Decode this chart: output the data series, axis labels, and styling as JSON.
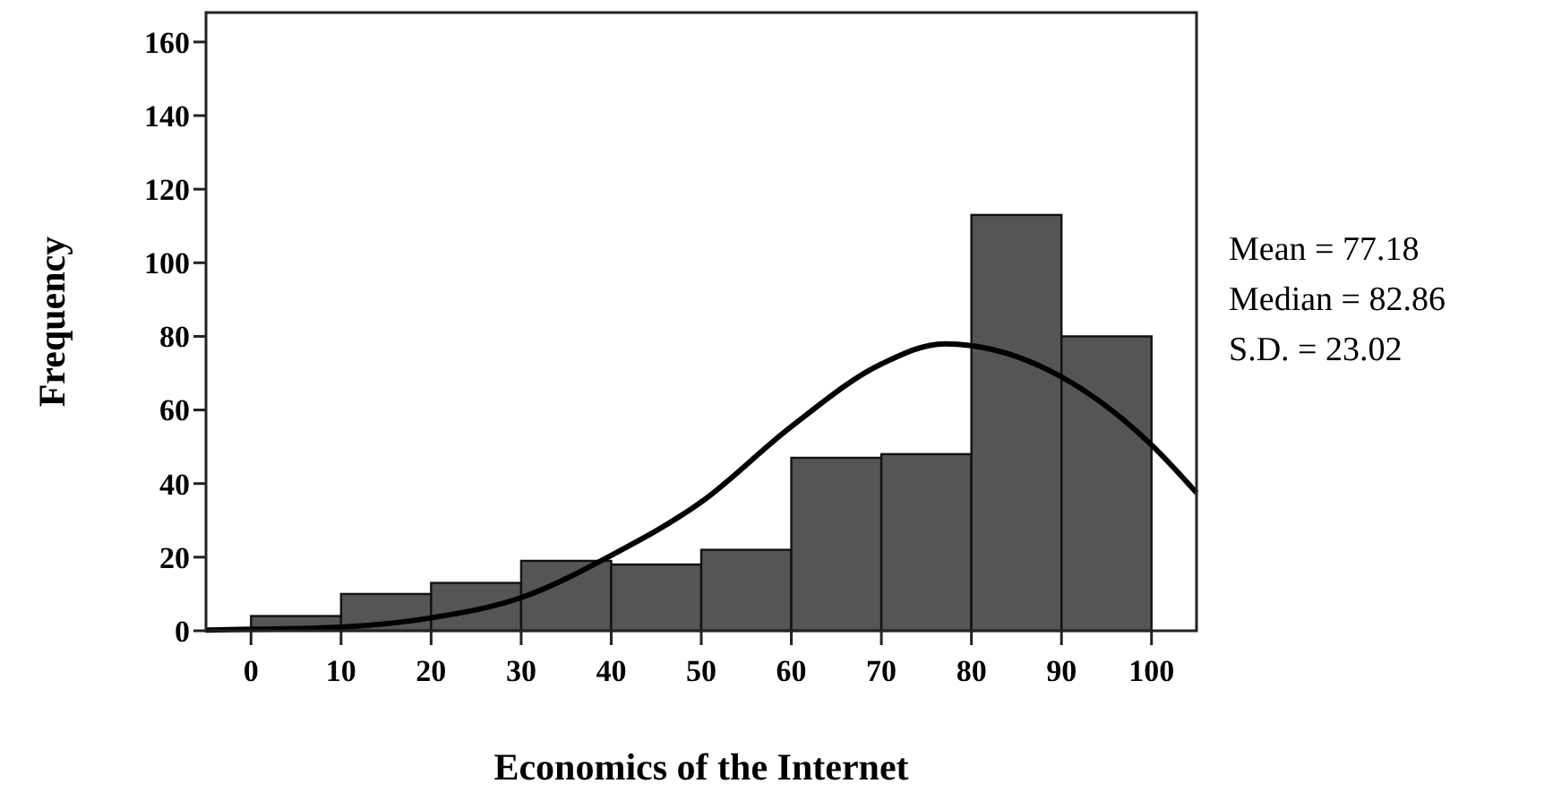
{
  "chart_data": {
    "type": "histogram",
    "xlabel": "Economics of the Internet",
    "ylabel": "Frequency",
    "xlim": [
      -5,
      105
    ],
    "ylim": [
      0,
      168
    ],
    "xticks": [
      0,
      10,
      20,
      30,
      40,
      50,
      60,
      70,
      80,
      90,
      100
    ],
    "yticks": [
      0,
      20,
      40,
      60,
      80,
      100,
      120,
      140,
      160
    ],
    "series": [
      {
        "color": "#555555",
        "bins": [
          0,
          10,
          20,
          30,
          40,
          50,
          60,
          70,
          80,
          90,
          100
        ],
        "values": [
          4,
          10,
          13,
          19,
          18,
          22,
          47,
          48,
          113,
          80
        ]
      },
      {
        "type": "line",
        "color": "#000000",
        "x": [
          -5,
          0,
          10,
          20,
          30,
          40,
          50,
          60,
          70,
          77,
          80,
          90,
          100,
          105
        ],
        "values": [
          0.2,
          0.4,
          1,
          3.5,
          9,
          20.5,
          35,
          55.5,
          72.5,
          78,
          77.5,
          69,
          50.5,
          37.5
        ]
      }
    ],
    "annotations": [
      "Mean = 77.18",
      "Median = 82.86",
      "S.D. = 23.02"
    ],
    "grid": false
  }
}
